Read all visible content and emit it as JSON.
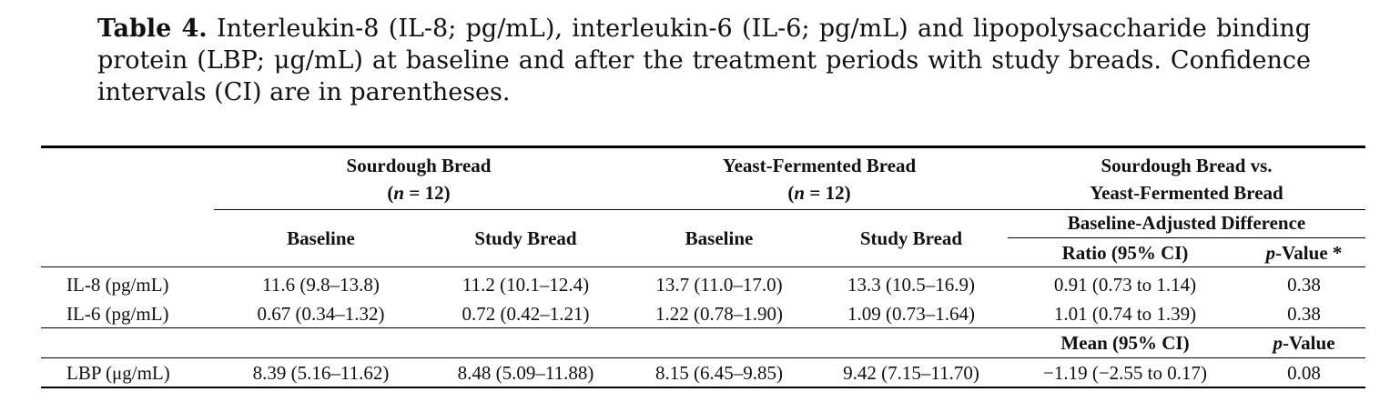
{
  "caption": {
    "label": "Table 4.",
    "text": "Interleukin-8 (IL-8; pg/mL), interleukin-6 (IL-6; pg/mL) and lipopolysaccharide binding protein (LBP; μg/mL) at baseline and after the treatment periods with study breads. Confidence intervals (CI) are in parentheses."
  },
  "header": {
    "group1_line1": "Sourdough Bread",
    "group1_line2": "(n = 12)",
    "group2_line1": "Yeast-Fermented Bread",
    "group2_line2": "(n = 12)",
    "group3_line1": "Sourdough Bread vs.",
    "group3_line2": "Yeast-Fermented Bread",
    "baseline1": "Baseline",
    "study1": "Study Bread",
    "baseline2": "Baseline",
    "study2": "Study Bread",
    "adjusted": "Baseline-Adjusted Difference",
    "ratio": "Ratio (95% CI)",
    "pvalue_star": "p-Value *",
    "mean": "Mean (95% CI)",
    "pvalue": "p-Value"
  },
  "rows": [
    {
      "label": "IL-8 (pg/mL)",
      "c1": "11.6 (9.8–13.8)",
      "c2": "11.2 (10.1–12.4)",
      "c3": "13.7 (11.0–17.0)",
      "c4": "13.3 (10.5–16.9)",
      "c5": "0.91 (0.73 to 1.14)",
      "c6": "0.38"
    },
    {
      "label": "IL-6 (pg/mL)",
      "c1": "0.67 (0.34–1.32)",
      "c2": "0.72 (0.42–1.21)",
      "c3": "1.22 (0.78–1.90)",
      "c4": "1.09 (0.73–1.64)",
      "c5": "1.01 (0.74 to 1.39)",
      "c6": "0.38"
    },
    {
      "label": "LBP (μg/mL)",
      "c1": "8.39 (5.16–11.62)",
      "c2": "8.48 (5.09–11.88)",
      "c3": "8.15 (6.45–9.85)",
      "c4": "9.42 (7.15–11.70)",
      "c5": "−1.19 (−2.55 to 0.17)",
      "c6": "0.08"
    }
  ]
}
